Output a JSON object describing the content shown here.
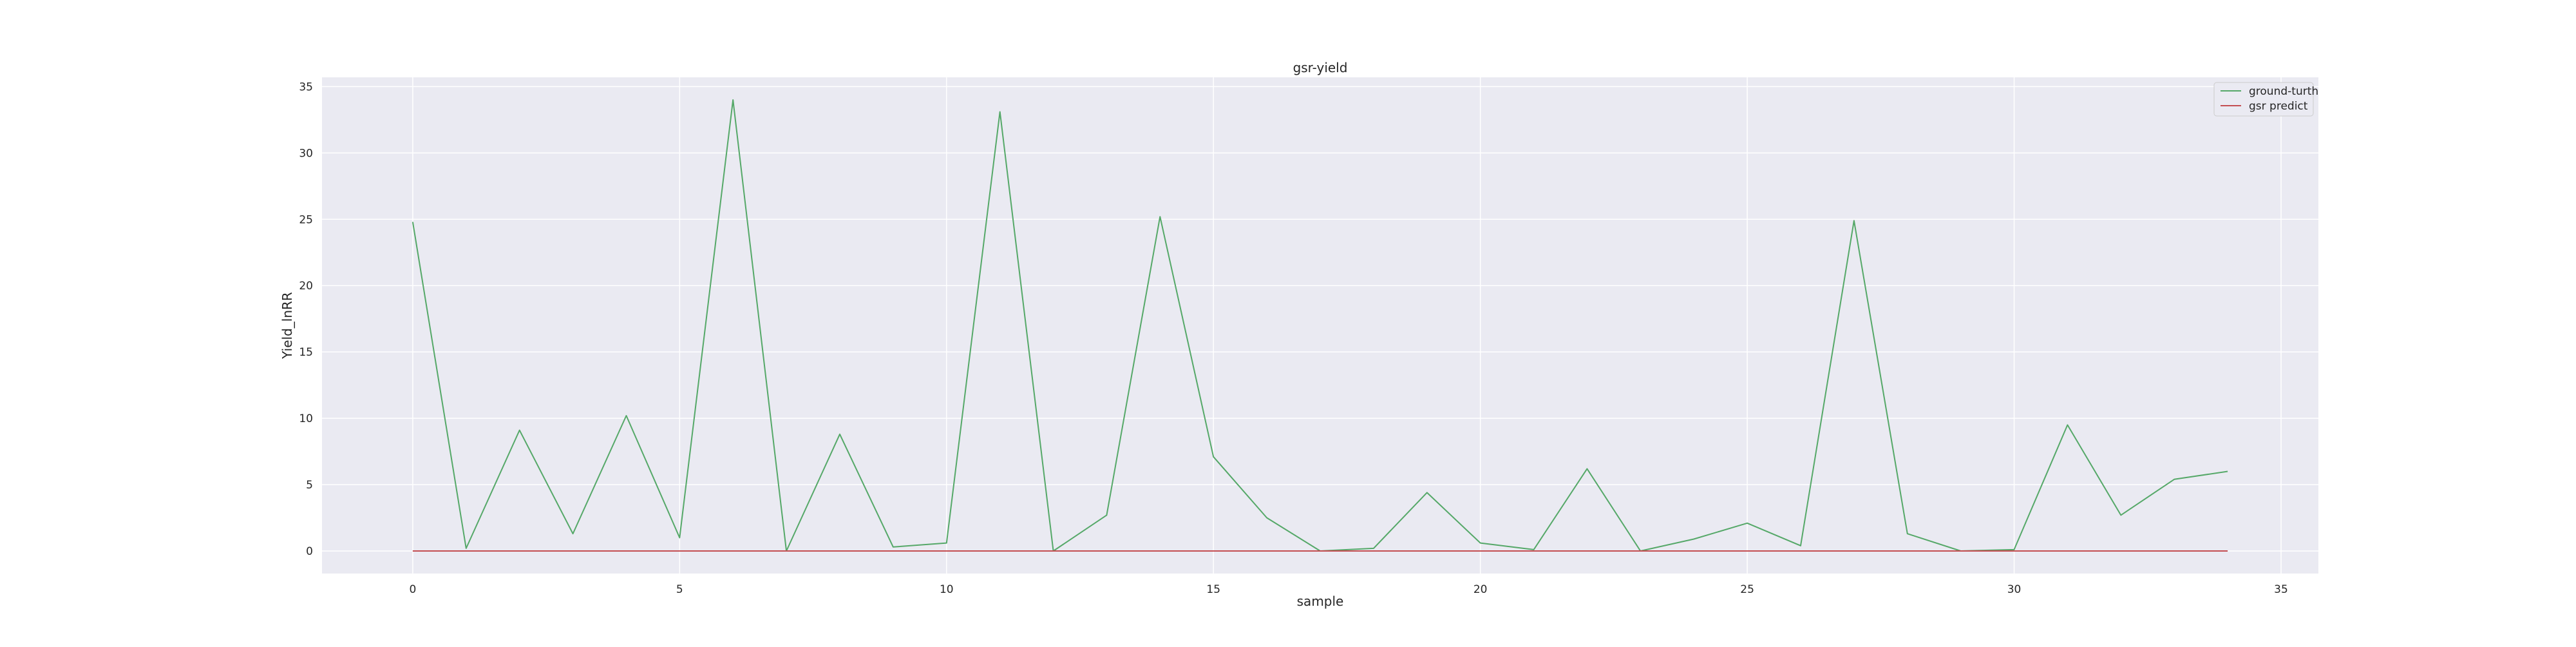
{
  "chart_data": {
    "type": "line",
    "title": "gsr-yield",
    "xlabel": "sample",
    "ylabel": "Yield_lnRR",
    "x": [
      0,
      1,
      2,
      3,
      4,
      5,
      6,
      7,
      8,
      9,
      10,
      11,
      12,
      13,
      14,
      15,
      16,
      17,
      18,
      19,
      20,
      21,
      22,
      23,
      24,
      25,
      26,
      27,
      28,
      29,
      30,
      31,
      32,
      33,
      34
    ],
    "series": [
      {
        "name": "ground-turth",
        "color": "#55a868",
        "values": [
          24.8,
          0.2,
          9.1,
          1.3,
          10.2,
          1.0,
          34.0,
          0.0,
          8.8,
          0.3,
          0.6,
          33.1,
          0.0,
          2.7,
          25.2,
          7.1,
          2.5,
          0.0,
          0.2,
          4.4,
          0.6,
          0.1,
          6.2,
          0.0,
          0.9,
          2.1,
          0.4,
          24.9,
          1.3,
          0.0,
          0.1,
          9.5,
          2.7,
          5.4,
          6.0
        ]
      },
      {
        "name": "gsr predict",
        "color": "#c44e52",
        "values": [
          0.0,
          0.0,
          0.0,
          0.0,
          0.0,
          0.0,
          0.0,
          0.0,
          0.0,
          0.0,
          0.0,
          0.0,
          0.0,
          0.0,
          0.0,
          0.0,
          0.0,
          0.0,
          0.0,
          0.0,
          0.0,
          0.0,
          0.0,
          0.0,
          0.0,
          0.0,
          0.0,
          0.0,
          0.0,
          0.0,
          0.0,
          0.0,
          0.0,
          0.0,
          0.0
        ]
      }
    ],
    "xlim": [
      -1.7,
      35.7
    ],
    "ylim": [
      -1.7,
      35.7
    ],
    "xticks": [
      0,
      5,
      10,
      15,
      20,
      25,
      30,
      35
    ],
    "yticks": [
      0,
      5,
      10,
      15,
      20,
      25,
      30,
      35
    ],
    "grid": true,
    "legend_position": "top-right",
    "background_color": "#eaeaf2",
    "grid_color": "#ffffff"
  }
}
